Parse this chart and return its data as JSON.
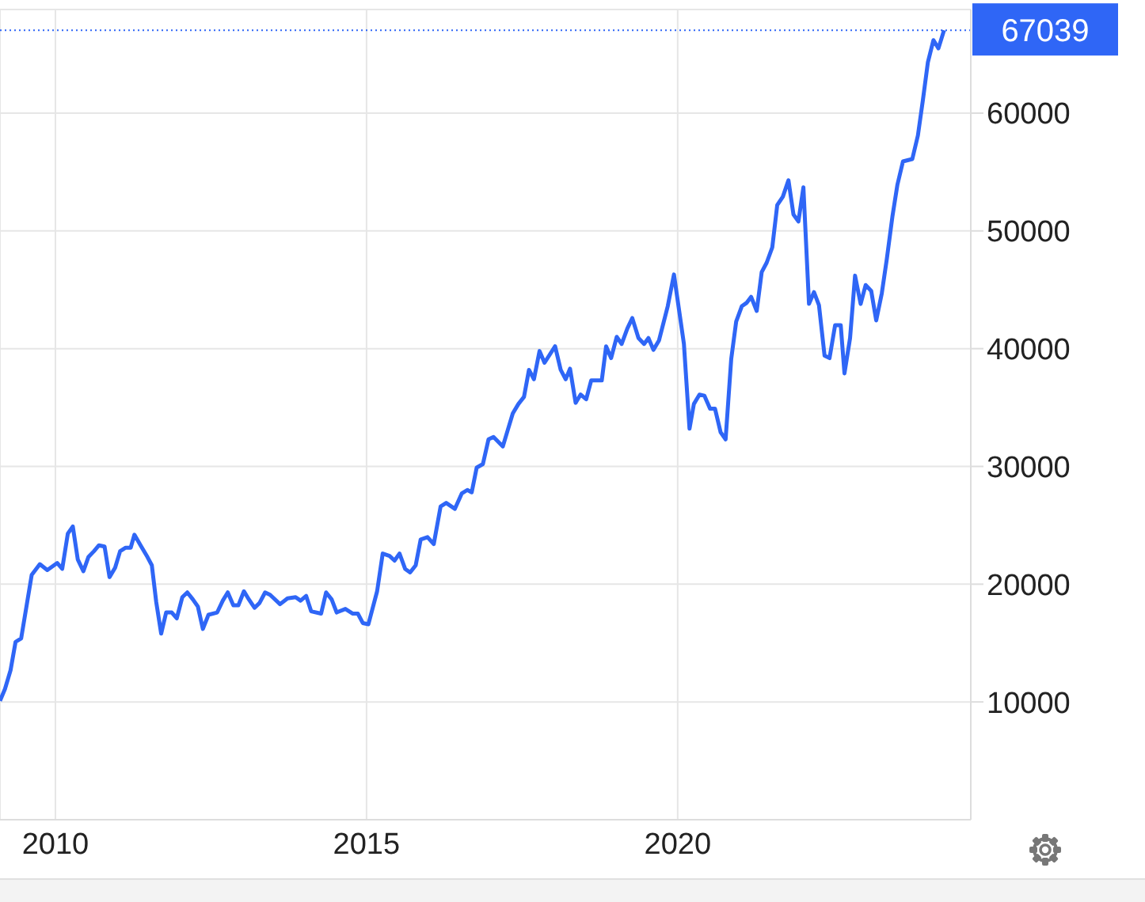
{
  "chart_data": {
    "type": "line",
    "x": [
      2009.11,
      2009.19,
      2009.28,
      2009.36,
      2009.45,
      2009.62,
      2009.75,
      2009.87,
      2010.03,
      2010.11,
      2010.2,
      2010.28,
      2010.36,
      2010.45,
      2010.53,
      2010.62,
      2010.7,
      2010.79,
      2010.87,
      2010.96,
      2011.04,
      2011.13,
      2011.21,
      2011.27,
      2011.38,
      2011.48,
      2011.55,
      2011.62,
      2011.7,
      2011.78,
      2011.87,
      2011.95,
      2012.04,
      2012.12,
      2012.21,
      2012.29,
      2012.37,
      2012.46,
      2012.6,
      2012.69,
      2012.77,
      2012.86,
      2012.94,
      2013.03,
      2013.11,
      2013.2,
      2013.28,
      2013.37,
      2013.45,
      2013.61,
      2013.73,
      2013.86,
      2013.94,
      2014.03,
      2014.11,
      2014.27,
      2014.35,
      2014.44,
      2014.52,
      2014.66,
      2014.78,
      2014.86,
      2014.94,
      2015.03,
      2015.17,
      2015.26,
      2015.37,
      2015.45,
      2015.53,
      2015.62,
      2015.7,
      2015.79,
      2015.87,
      2015.98,
      2016.08,
      2016.19,
      2016.28,
      2016.42,
      2016.53,
      2016.62,
      2016.69,
      2016.77,
      2016.87,
      2016.96,
      2017.04,
      2017.19,
      2017.27,
      2017.35,
      2017.44,
      2017.53,
      2017.61,
      2017.69,
      2017.78,
      2017.86,
      2018.03,
      2018.12,
      2018.2,
      2018.27,
      2018.36,
      2018.44,
      2018.53,
      2018.61,
      2018.78,
      2018.85,
      2018.93,
      2019.02,
      2019.1,
      2019.19,
      2019.27,
      2019.37,
      2019.46,
      2019.53,
      2019.61,
      2019.7,
      2019.84,
      2019.94,
      2020.1,
      2020.19,
      2020.26,
      2020.35,
      2020.43,
      2020.52,
      2020.6,
      2020.69,
      2020.77,
      2020.86,
      2020.94,
      2021.03,
      2021.11,
      2021.18,
      2021.27,
      2021.35,
      2021.43,
      2021.52,
      2021.6,
      2021.69,
      2021.78,
      2021.86,
      2021.94,
      2022.02,
      2022.11,
      2022.19,
      2022.27,
      2022.36,
      2022.44,
      2022.53,
      2022.62,
      2022.68,
      2022.77,
      2022.85,
      2022.94,
      2023.02,
      2023.11,
      2023.19,
      2023.28,
      2023.36,
      2023.45,
      2023.53,
      2023.62,
      2023.77,
      2023.86,
      2023.94,
      2024.02,
      2024.11,
      2024.19,
      2024.28
    ],
    "series": [
      {
        "color": "#2f66f6",
        "values": [
          10100,
          11100,
          12700,
          15100,
          15400,
          20800,
          21700,
          21200,
          21800,
          21300,
          24300,
          24900,
          22100,
          21100,
          22300,
          22800,
          23300,
          23200,
          20600,
          21400,
          22800,
          23100,
          23100,
          24200,
          23200,
          22300,
          21600,
          18500,
          15800,
          17600,
          17600,
          17100,
          18900,
          19300,
          18700,
          18100,
          16200,
          17400,
          17600,
          18600,
          19300,
          18200,
          18200,
          19400,
          18700,
          18000,
          18400,
          19300,
          19100,
          18300,
          18800,
          18900,
          18600,
          19000,
          17700,
          17500,
          19300,
          18700,
          17600,
          17900,
          17500,
          17500,
          16700,
          16600,
          19400,
          22600,
          22400,
          22000,
          22600,
          21300,
          21000,
          21600,
          23800,
          24000,
          23400,
          26600,
          26900,
          26400,
          27700,
          28000,
          27800,
          29900,
          30200,
          32300,
          32500,
          31700,
          33100,
          34500,
          35300,
          35900,
          38200,
          37400,
          39800,
          38800,
          40200,
          38200,
          37400,
          38300,
          35400,
          36100,
          35700,
          37300,
          37300,
          40200,
          39200,
          41000,
          40400,
          41700,
          42600,
          40900,
          40400,
          40900,
          39900,
          40700,
          43600,
          46300,
          40400,
          33200,
          35300,
          36100,
          36000,
          34900,
          34900,
          32900,
          32300,
          39100,
          42300,
          43600,
          43900,
          44400,
          43200,
          46500,
          47300,
          48600,
          52200,
          52900,
          54300,
          51400,
          50800,
          53700,
          43800,
          44800,
          43700,
          39400,
          39200,
          42000,
          42000,
          37900,
          40900,
          46200,
          43800,
          45400,
          44900,
          42400,
          44700,
          47600,
          51200,
          53900,
          55900,
          56100,
          58100,
          61100,
          64300,
          66200,
          65500,
          67039
        ]
      }
    ],
    "xlim": [
      2009.11,
      2024.71
    ],
    "xticks": [
      2010,
      2015,
      2020
    ],
    "ylim": [
      0,
      68800
    ],
    "yticks": [
      10000,
      20000,
      30000,
      40000,
      50000,
      60000
    ],
    "grid": true,
    "ref_lines": [
      {
        "axis": "y",
        "value": 67039,
        "label": "67039",
        "color": "#2f66f6",
        "line_style": "dotted"
      }
    ]
  }
}
